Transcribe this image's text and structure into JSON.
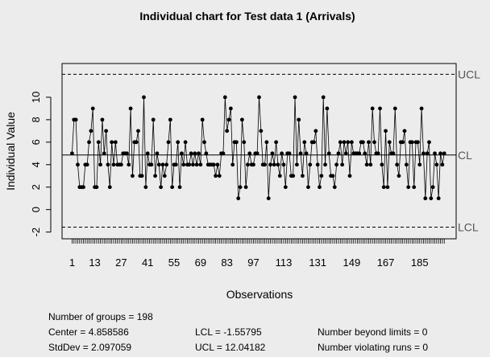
{
  "chart_data": {
    "type": "line",
    "title": "Individual chart for Test data 1 (Arrivals)",
    "xlabel": "Observations",
    "ylabel": "Individual Value",
    "n": 198,
    "xlim": [
      -2,
      202
    ],
    "ylim": [
      -2.6,
      13.0
    ],
    "yticks": [
      -2,
      0,
      2,
      4,
      6,
      8,
      10
    ],
    "xtick_labels": [
      1,
      13,
      27,
      41,
      55,
      69,
      83,
      97,
      113,
      131,
      149,
      167,
      185
    ],
    "limits": {
      "UCL": 12.04182,
      "CL": 4.858586,
      "LCL": -1.55795
    },
    "limit_labels": {
      "ucl": "UCL",
      "cl": "CL",
      "lcl": "LCL"
    },
    "values": [
      5,
      8,
      8,
      4,
      2,
      2,
      2,
      4,
      4,
      6,
      7,
      9,
      2,
      2,
      6,
      4,
      8,
      5,
      7,
      4,
      2,
      6,
      4,
      6,
      4,
      4,
      4,
      5,
      5,
      5,
      4,
      9,
      3,
      6,
      6,
      7,
      3,
      3,
      10,
      2,
      5,
      4,
      4,
      8,
      3,
      5,
      4,
      2,
      4,
      3,
      4,
      6,
      8,
      2,
      4,
      4,
      6,
      2,
      5,
      4,
      6,
      4,
      4,
      5,
      4,
      5,
      4,
      5,
      4,
      8,
      6,
      5,
      4,
      4,
      4,
      4,
      3,
      4,
      3,
      5,
      5,
      10,
      7,
      8,
      9,
      4,
      6,
      6,
      1,
      2,
      8,
      6,
      2,
      4,
      5,
      4,
      4,
      5,
      5,
      10,
      7,
      4,
      4,
      6,
      1,
      4,
      5,
      4,
      6,
      4,
      3,
      5,
      4,
      2,
      5,
      5,
      3,
      3,
      10,
      4,
      8,
      5,
      3,
      6,
      5,
      2,
      4,
      6,
      6,
      7,
      4,
      2,
      3,
      10,
      4,
      9,
      5,
      3,
      3,
      2,
      4,
      5,
      6,
      4,
      6,
      5,
      6,
      3,
      6,
      5,
      5,
      5,
      5,
      6,
      6,
      5,
      4,
      6,
      4,
      9,
      6,
      5,
      5,
      9,
      4,
      2,
      7,
      2,
      6,
      5,
      5,
      9,
      4,
      3,
      6,
      6,
      7,
      4,
      2,
      6,
      6,
      2,
      6,
      6,
      4,
      9,
      5,
      1,
      5,
      6,
      1,
      2,
      5,
      4,
      1,
      5,
      4,
      5
    ],
    "stats": {
      "groups": "Number of groups = 198",
      "center": "Center = 4.858586",
      "stddev": "StdDev = 2.097059",
      "lcl": "LCL = -1.55795",
      "ucl": "UCL = 12.04182",
      "beyond": "Number beyond limits = 0",
      "runs": "Number violating runs = 0"
    }
  }
}
